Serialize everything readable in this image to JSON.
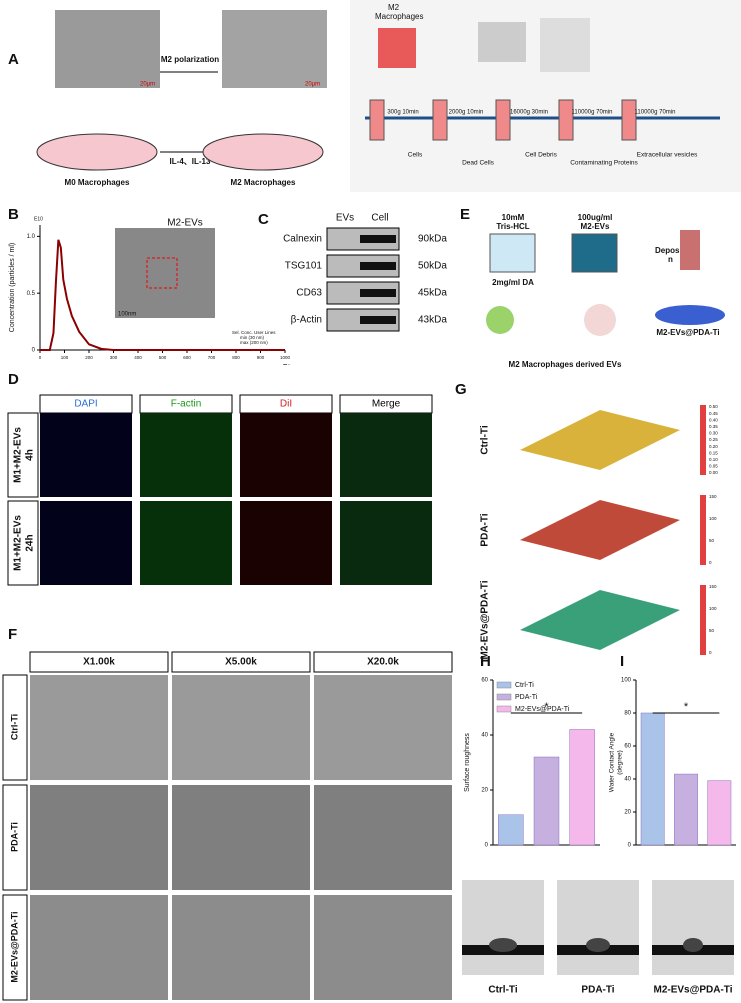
{
  "panel_labels": [
    "A",
    "B",
    "C",
    "D",
    "E",
    "F",
    "G",
    "H",
    "I"
  ],
  "panel_a": {
    "top_label": [
      "M2",
      "Macrophages"
    ],
    "arrow_label": "M2 polarization",
    "scale_bars": [
      "20μm",
      "20μm"
    ],
    "cytokines": "IL-4、IL-13",
    "left_caption": "M0 Macrophages",
    "right_caption": "M2 Macrophages",
    "steps": [
      "300g 10min",
      "2000g 10min",
      "16000g 30min",
      "110000g 70min",
      "110000g 70min"
    ],
    "products": [
      "Cells",
      "Dead Cells",
      "Cell Debris",
      "Contaminating Proteins",
      "Extracellular vesicles"
    ]
  },
  "panel_b": {
    "chart_data": {
      "type": "line",
      "exponent": "E10",
      "y_label": "Concentration (particles / ml)",
      "x_label": "Size(nm)",
      "x": [
        0,
        40,
        55,
        65,
        75,
        85,
        95,
        110,
        130,
        160,
        200,
        250,
        300,
        400,
        600,
        1000
      ],
      "values": [
        0,
        0,
        0.15,
        0.6,
        0.97,
        0.9,
        0.62,
        0.45,
        0.3,
        0.16,
        0.05,
        0.01,
        0,
        0,
        0,
        0
      ],
      "color": "#8b0000",
      "xlim": [
        0,
        1000
      ],
      "ylim": [
        0,
        1.1
      ],
      "xticks": [
        0,
        100,
        200,
        300,
        400,
        500,
        600,
        700,
        800,
        900,
        1000
      ],
      "yticks": [
        0,
        0.5,
        {
          "value": 1,
          "label": "1.0"
        }
      ]
    },
    "inset_title": "M2-EVs",
    "inset_scale": "100nm",
    "legend": [
      "Sel. Conc. User Lines",
      "min (30 nm)",
      "max (200 nm)"
    ]
  },
  "panel_c": {
    "columns": [
      "EVs",
      "Cell"
    ],
    "rows": [
      "Calnexin",
      "TSG101",
      "CD63",
      "β-Actin"
    ],
    "sizes": [
      "90kDa",
      "50kDa",
      "45kDa",
      "43kDa"
    ]
  },
  "panel_d": {
    "columns": [
      "DAPI",
      "F-actin",
      "DiI",
      "Merge"
    ],
    "rows": [
      [
        "M1+M2-EVs",
        "4h"
      ],
      [
        "M1+M2-EVs",
        "24h"
      ]
    ]
  },
  "panel_e": {
    "reagent_1": [
      "10mM",
      "Tris-HCL"
    ],
    "reagent_2": [
      "100ug/ml",
      "M2-EVs"
    ],
    "reagent_3": "2mg/ml DA",
    "step": [
      "Depositio",
      "n"
    ],
    "product": "M2-EVs@PDA-Ti",
    "source": "M2 Macrophages derived EVs"
  },
  "panel_f": {
    "columns": [
      "X1.00k",
      "X5.00k",
      "X20.0k"
    ],
    "rows": [
      "Ctrl-Ti",
      "PDA-Ti",
      "M2-EVs@PDA-Ti"
    ]
  },
  "panel_g": {
    "rows": [
      "Ctrl-Ti",
      "PDA-Ti",
      "M2-EVs@PDA-Ti"
    ],
    "colorbars": [
      [
        "0.50",
        "0.45",
        "0.40",
        "0.35",
        "0.30",
        "0.25",
        "0.20",
        "0.15",
        "0.10",
        "0.05",
        "0.00"
      ],
      [
        "150",
        "100",
        "50",
        "0"
      ],
      [
        "150",
        "100",
        "50",
        "0"
      ]
    ]
  },
  "panel_h": {
    "chart_data": {
      "type": "bar",
      "y_label": "Surface roughness",
      "categories": [
        "Ctrl-Ti",
        "PDA-Ti",
        "M2-EVs@PDA-Ti"
      ],
      "values": [
        11,
        32,
        42
      ],
      "colors": [
        "#a9c4e8",
        "#c5b0e0",
        "#f5b8ea"
      ],
      "ylim": [
        0,
        60
      ],
      "yticks": [
        0,
        20,
        40,
        60
      ],
      "legend": true,
      "significance": "*"
    }
  },
  "panel_i": {
    "chart_data": {
      "type": "bar",
      "y_label": [
        "Water Contact Angle",
        "(degree)"
      ],
      "categories": [
        "Ctrl-Ti",
        "PDA-Ti",
        "M2-EVs@PDA-Ti"
      ],
      "values": [
        80,
        43,
        39
      ],
      "colors": [
        "#a9c4e8",
        "#c5b0e0",
        "#f5b8ea"
      ],
      "ylim": [
        0,
        100
      ],
      "yticks": [
        0,
        20,
        40,
        60,
        80,
        100
      ],
      "legend": false,
      "significance": "*"
    }
  },
  "contact_angle_captions": [
    "Ctrl-Ti",
    "PDA-Ti",
    "M2-EVs@PDA-Ti"
  ]
}
